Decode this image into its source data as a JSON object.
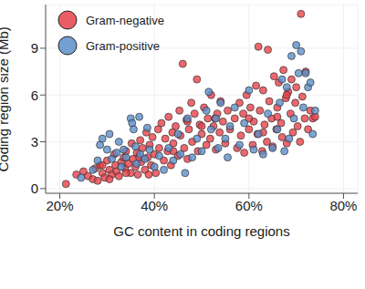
{
  "chart_data": {
    "type": "scatter",
    "x_label": "GC content in coding regions",
    "y_label": "Coding region size (Mb)",
    "xlim": [
      17,
      83
    ],
    "ylim": [
      -0.3,
      11.8
    ],
    "xticks": [
      {
        "value": 20,
        "label": "20%"
      },
      {
        "value": 40,
        "label": "40%"
      },
      {
        "value": 60,
        "label": "60%"
      },
      {
        "value": 80,
        "label": "80%"
      }
    ],
    "yticks": [
      0,
      3,
      6,
      9
    ],
    "grid": true,
    "legend": "upper left",
    "marker": "circle",
    "series": [
      {
        "name": "Gram-negative",
        "color": "#e8414a",
        "values": [
          [
            21.3,
            0.3
          ],
          [
            23.5,
            0.9
          ],
          [
            25,
            1.1
          ],
          [
            26,
            0.8
          ],
          [
            27,
            0.6
          ],
          [
            27.5,
            1.3
          ],
          [
            28,
            0.5
          ],
          [
            28.5,
            1.5
          ],
          [
            29,
            1.0
          ],
          [
            29.5,
            0.7
          ],
          [
            30,
            1.8
          ],
          [
            30.5,
            1.2
          ],
          [
            31,
            0.9
          ],
          [
            31.5,
            2.2
          ],
          [
            31.8,
            1.5
          ],
          [
            32,
            1.1
          ],
          [
            32.5,
            0.8
          ],
          [
            33,
            1.7
          ],
          [
            33.5,
            2.0
          ],
          [
            33.8,
            1.3
          ],
          [
            34,
            2.4
          ],
          [
            34.5,
            1.6
          ],
          [
            35,
            1.0
          ],
          [
            35.2,
            2.9
          ],
          [
            35.5,
            1.9
          ],
          [
            36,
            1.4
          ],
          [
            36.3,
            2.3
          ],
          [
            36.5,
            0.9
          ],
          [
            37,
            3.1
          ],
          [
            37.2,
            1.7
          ],
          [
            37.5,
            2.6
          ],
          [
            38,
            1.2
          ],
          [
            38.3,
            3.6
          ],
          [
            38.6,
            2.0
          ],
          [
            39,
            2.8
          ],
          [
            39.3,
            1.5
          ],
          [
            39.6,
            3.3
          ],
          [
            40,
            2.2
          ],
          [
            40.3,
            1.0
          ],
          [
            29,
            1.5
          ],
          [
            30.5,
            0.6
          ],
          [
            34,
            1.0
          ],
          [
            36.8,
            2.0
          ],
          [
            38.8,
            0.9
          ],
          [
            40.8,
            3.8
          ],
          [
            41,
            2.6
          ],
          [
            41.5,
            4.2
          ],
          [
            42,
            1.8
          ],
          [
            42.3,
            3.2
          ],
          [
            42.8,
            2.4
          ],
          [
            43,
            4.6
          ],
          [
            43.5,
            1.5
          ],
          [
            43.8,
            3.6
          ],
          [
            44,
            2.9
          ],
          [
            44.5,
            4.0
          ],
          [
            45,
            2.1
          ],
          [
            45.3,
            5.0
          ],
          [
            45.5,
            3.4
          ],
          [
            46,
            8.0
          ],
          [
            46.3,
            2.6
          ],
          [
            46.8,
            4.4
          ],
          [
            47,
            1.9
          ],
          [
            47.3,
            3.8
          ],
          [
            47.8,
            5.5
          ],
          [
            48,
            3.0
          ],
          [
            48.5,
            4.8
          ],
          [
            49,
            7.0
          ],
          [
            49.2,
            2.4
          ],
          [
            49.6,
            4.1
          ],
          [
            50,
            3.5
          ],
          [
            50.5,
            5.2
          ],
          [
            51,
            2.8
          ],
          [
            51.3,
            4.5
          ],
          [
            51.8,
            3.2
          ],
          [
            52,
            6.0
          ],
          [
            52.5,
            4.0
          ],
          [
            53,
            2.5
          ],
          [
            53.3,
            4.8
          ],
          [
            53.8,
            3.6
          ],
          [
            54,
            5.6
          ],
          [
            54.5,
            4.3
          ],
          [
            55,
            2.9
          ],
          [
            55.5,
            5.0
          ],
          [
            56,
            3.8
          ],
          [
            44,
            2.4
          ],
          [
            47,
            4.3
          ],
          [
            50,
            4.0
          ],
          [
            52.8,
            4.5
          ],
          [
            57,
            4.5
          ],
          [
            57.5,
            2.6
          ],
          [
            58,
            5.5
          ],
          [
            58.3,
            3.4
          ],
          [
            58.8,
            4.8
          ],
          [
            59,
            2.3
          ],
          [
            59.5,
            6.0
          ],
          [
            60,
            3.8
          ],
          [
            60.3,
            5.2
          ],
          [
            60.8,
            2.8
          ],
          [
            61,
            4.3
          ],
          [
            61.5,
            6.6
          ],
          [
            61.8,
            3.5
          ],
          [
            62,
            9.1
          ],
          [
            62.3,
            5.0
          ],
          [
            62.8,
            2.4
          ],
          [
            63,
            6.3
          ],
          [
            63.3,
            4.1
          ],
          [
            63.8,
            3.0
          ],
          [
            64,
            8.9
          ],
          [
            64.3,
            5.6
          ],
          [
            64.8,
            4.5
          ],
          [
            65,
            2.7
          ],
          [
            65.3,
            7.2
          ],
          [
            65.8,
            3.8
          ],
          [
            66,
            5.2
          ],
          [
            66.3,
            6.8
          ],
          [
            66.8,
            4.2
          ],
          [
            67,
            3.3
          ],
          [
            67.3,
            7.6
          ],
          [
            67.8,
            5.8
          ],
          [
            68,
            2.9
          ],
          [
            68.3,
            6.2
          ],
          [
            68.8,
            4.8
          ],
          [
            69,
            7.0
          ],
          [
            69.3,
            3.6
          ],
          [
            69.8,
            5.5
          ],
          [
            70,
            6.5
          ],
          [
            70.3,
            4.0
          ],
          [
            70.8,
            3.0
          ],
          [
            71,
            11.2
          ],
          [
            71.3,
            5.9
          ],
          [
            71.8,
            4.5
          ],
          [
            72,
            7.5
          ],
          [
            72.5,
            3.8
          ],
          [
            73,
            5.0
          ],
          [
            73.5,
            4.5
          ],
          [
            74,
            4.6
          ],
          [
            60,
            4.5
          ],
          [
            66,
            4.6
          ],
          [
            68,
            6.0
          ],
          [
            63,
            3.6
          ]
        ]
      },
      {
        "name": "Gram-positive",
        "color": "#5b8fc9",
        "values": [
          [
            24.5,
            0.7
          ],
          [
            27,
            1.2
          ],
          [
            28,
            1.8
          ],
          [
            28.5,
            2.8
          ],
          [
            29,
            3.2
          ],
          [
            30,
            2.5
          ],
          [
            30.5,
            3.5
          ],
          [
            31,
            1.9
          ],
          [
            32,
            2.3
          ],
          [
            32.5,
            3.0
          ],
          [
            33,
            1.4
          ],
          [
            33.5,
            2.5
          ],
          [
            34,
            2.0
          ],
          [
            35,
            4.5
          ],
          [
            35.3,
            4.2
          ],
          [
            35.6,
            3.8
          ],
          [
            36,
            2.7
          ],
          [
            36.2,
            1.6
          ],
          [
            36.8,
            4.6
          ],
          [
            37,
            2.2
          ],
          [
            38,
            1.9
          ],
          [
            38.5,
            3.9
          ],
          [
            39,
            2.5
          ],
          [
            40,
            1.4
          ],
          [
            41,
            2.1
          ],
          [
            42,
            1.2
          ],
          [
            43,
            2.6
          ],
          [
            44,
            1.8
          ],
          [
            45,
            3.5
          ],
          [
            45.5,
            2.2
          ],
          [
            46.5,
            1.0
          ],
          [
            47,
            4.5
          ],
          [
            48,
            2.0
          ],
          [
            49,
            3.2
          ],
          [
            50,
            2.4
          ],
          [
            51,
            5.0
          ],
          [
            51.5,
            6.2
          ],
          [
            52,
            3.8
          ],
          [
            53,
            4.5
          ],
          [
            53.5,
            2.6
          ],
          [
            54,
            5.5
          ],
          [
            55,
            3.2
          ],
          [
            55.5,
            2.0
          ],
          [
            56,
            4.0
          ],
          [
            57,
            5.2
          ],
          [
            58,
            2.8
          ],
          [
            59,
            4.2
          ],
          [
            60,
            6.3
          ],
          [
            61,
            2.5
          ],
          [
            62,
            3.5
          ],
          [
            63,
            2.2
          ],
          [
            64,
            4.8
          ],
          [
            65,
            2.6
          ],
          [
            66,
            3.8
          ],
          [
            66.5,
            5.5
          ],
          [
            67,
            7.0
          ],
          [
            67.5,
            2.4
          ],
          [
            68,
            6.5
          ],
          [
            68.5,
            3.2
          ],
          [
            69,
            8.5
          ],
          [
            69.5,
            4.5
          ],
          [
            70,
            9.2
          ],
          [
            70.5,
            7.4
          ],
          [
            71,
            8.8
          ],
          [
            71.5,
            5.2
          ],
          [
            72,
            7.4
          ],
          [
            72.5,
            6.5
          ],
          [
            73,
            6.8
          ],
          [
            73.5,
            3.5
          ],
          [
            74,
            5.0
          ]
        ]
      }
    ]
  }
}
